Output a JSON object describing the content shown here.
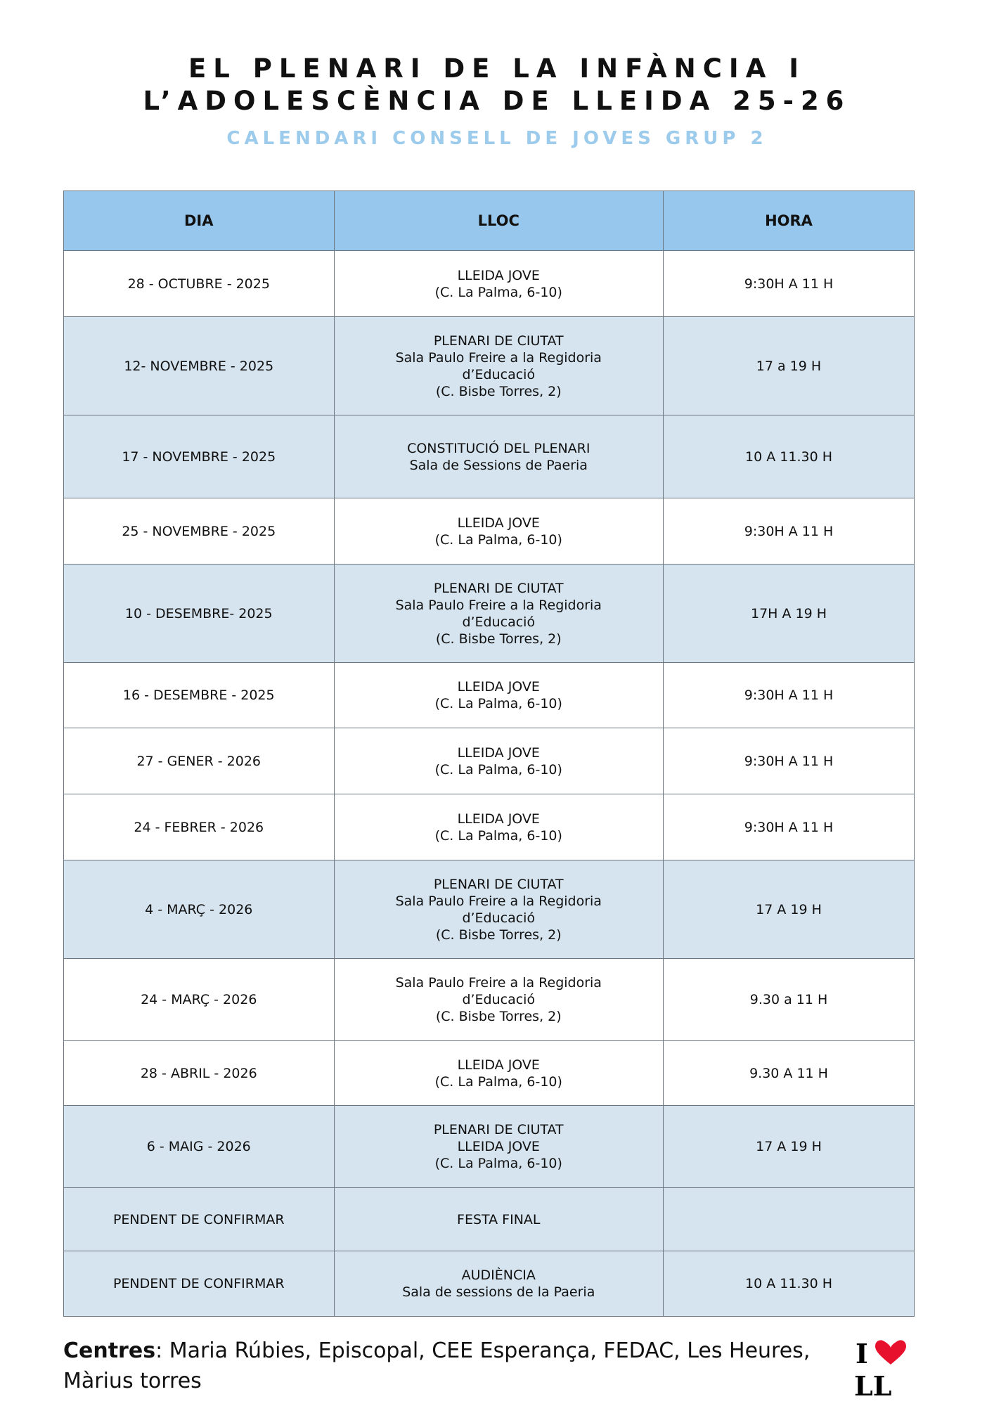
{
  "header": {
    "title_line1": "EL PLENARI DE LA INFÀNCIA I",
    "title_line2": "L’ADOLESCÈNCIA DE LLEIDA 25-26",
    "subtitle": "CALENDARI CONSELL DE JOVES GRUP 2"
  },
  "colors": {
    "header_bg": "#97c7ec",
    "row_blue": "#d5e4ef",
    "subtitle": "#9ccbeb",
    "heart": "#e8112d"
  },
  "table": {
    "columns": [
      "DIA",
      "LLOC",
      "HORA"
    ],
    "rows": [
      {
        "dia": "28 - OCTUBRE - 2025",
        "lloc": [
          "LLEIDA JOVE",
          "(C. La Palma, 6-10)"
        ],
        "hora": "9:30H A 11 H",
        "shade": "white"
      },
      {
        "dia": "12- NOVEMBRE  - 2025",
        "lloc": [
          "PLENARI DE CIUTAT",
          "Sala Paulo Freire a la Regidoria",
          "d’Educació",
          "(C. Bisbe Torres, 2)"
        ],
        "hora": "17 a 19 H",
        "shade": "blue"
      },
      {
        "dia": "17  - NOVEMBRE - 2025",
        "lloc": [
          "CONSTITUCIÓ DEL PLENARI",
          "Sala de Sessions de Paeria"
        ],
        "hora": "10 A 11.30 H",
        "shade": "blue"
      },
      {
        "dia": "25 - NOVEMBRE - 2025",
        "lloc": [
          "LLEIDA JOVE",
          "(C. La Palma, 6-10)"
        ],
        "hora": "9:30H A 11 H",
        "shade": "white"
      },
      {
        "dia": "10 - DESEMBRE- 2025",
        "lloc": [
          "PLENARI DE CIUTAT",
          "Sala Paulo Freire a la Regidoria",
          "d’Educació",
          "(C. Bisbe Torres, 2)"
        ],
        "hora": "17H A 19 H",
        "shade": "blue"
      },
      {
        "dia": "16 - DESEMBRE - 2025",
        "lloc": [
          "LLEIDA JOVE",
          "(C. La Palma, 6-10)"
        ],
        "hora": "9:30H A 11 H",
        "shade": "white"
      },
      {
        "dia": "27 - GENER - 2026",
        "lloc": [
          "LLEIDA JOVE",
          "(C. La Palma, 6-10)"
        ],
        "hora": "9:30H A 11 H",
        "shade": "white"
      },
      {
        "dia": "24 - FEBRER - 2026",
        "lloc": [
          "LLEIDA JOVE",
          "(C. La Palma, 6-10)"
        ],
        "hora": "9:30H A 11 H",
        "shade": "white"
      },
      {
        "dia": "4 - MARÇ - 2026",
        "lloc": [
          "PLENARI DE CIUTAT",
          "Sala Paulo Freire a la Regidoria",
          "d’Educació",
          "(C. Bisbe Torres, 2)"
        ],
        "hora": "17 A 19 H",
        "shade": "blue"
      },
      {
        "dia": "24 - MARÇ - 2026",
        "lloc": [
          "Sala Paulo Freire a la Regidoria",
          "d’Educació",
          "(C. Bisbe Torres, 2)"
        ],
        "hora": "9.30 a 11 H",
        "shade": "white"
      },
      {
        "dia": "28 - ABRIL - 2026",
        "lloc": [
          "LLEIDA JOVE",
          "(C. La Palma, 6-10)"
        ],
        "hora": "9.30 A 11 H",
        "shade": "white"
      },
      {
        "dia": "6 - MAIG - 2026",
        "lloc": [
          "PLENARI DE CIUTAT",
          "LLEIDA JOVE",
          "(C. La Palma, 6-10)"
        ],
        "hora": "17 A 19 H",
        "shade": "blue"
      },
      {
        "dia": "PENDENT DE CONFIRMAR",
        "lloc": [
          "FESTA FINAL"
        ],
        "hora": "",
        "shade": "blue"
      },
      {
        "dia": "PENDENT DE CONFIRMAR",
        "lloc": [
          "AUDIÈNCIA",
          "Sala de sessions de la Paeria"
        ],
        "hora": "10 A 11.30 H",
        "shade": "blue"
      }
    ]
  },
  "footer": {
    "label": "Centres",
    "text": ": Maria Rúbies, Episcopal, CEE Esperança, FEDAC, Les Heures, Màrius torres",
    "logo_text": "I ♥ LL"
  }
}
